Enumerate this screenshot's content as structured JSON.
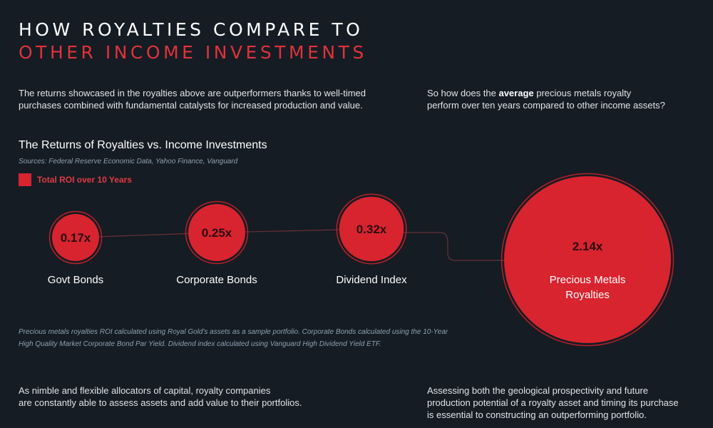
{
  "header": {
    "title_line1": "HOW ROYALTIES COMPARE TO",
    "title_line2": "OTHER INCOME INVESTMENTS"
  },
  "intro": {
    "left_line1": "The returns showcased in the royalties above are outperformers thanks to well-timed",
    "left_line2": "purchases combined with fundamental catalysts for increased production and value.",
    "right_line1_before": "So how does the ",
    "right_line1_bold": "average",
    "right_line1_after": " precious metals royalty",
    "right_line2": "perform over ten years compared to other income assets?"
  },
  "chart_data": {
    "type": "bubble",
    "title": "The Returns of Royalties vs. Income Investments",
    "sources": "Sources: Federal Reserve Economic Data, Yahoo Finance, Vanguard",
    "legend": "Total ROI over 10 Years",
    "categories": [
      "Govt Bonds",
      "Corporate Bonds",
      "Dividend Index",
      "Precious Metals Royalties"
    ],
    "values": [
      0.17,
      0.25,
      0.32,
      2.14
    ],
    "value_labels": [
      "0.17x",
      "0.25x",
      "0.32x",
      "2.14x"
    ],
    "label_lines": [
      [
        "Govt Bonds"
      ],
      [
        "Corporate Bonds"
      ],
      [
        "Dividend Index"
      ],
      [
        "Precious Metals",
        "Royalties"
      ]
    ],
    "color": "#d8242f",
    "ring_color": "#b9202a",
    "line_color": "#6a3038"
  },
  "footnote": {
    "line1": "Precious metals royalties ROI calculated using Royal Gold's assets as a sample portfolio. Corporate Bonds calculated using the 10-Year",
    "line2": "High Quality Market Corporate Bond Par Yield. Dividend index calculated using Vanguard High Dividend Yield ETF."
  },
  "bottom": {
    "left_line1": "As nimble and flexible allocators of capital, royalty companies",
    "left_line2": "are constantly able to assess assets and add value to their portfolios.",
    "right_line1": "Assessing both the geological prospectivity and future",
    "right_line2": "production potential of a royalty asset and timing its purchase",
    "right_line3": "is essential to constructing an outperforming portfolio."
  }
}
